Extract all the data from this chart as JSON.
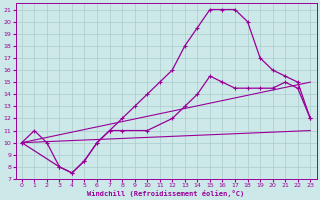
{
  "xlabel": "Windchill (Refroidissement éolien,°C)",
  "xlim": [
    -0.5,
    23.5
  ],
  "ylim": [
    7,
    21.5
  ],
  "xticks": [
    0,
    1,
    2,
    3,
    4,
    5,
    6,
    7,
    8,
    9,
    10,
    11,
    12,
    13,
    14,
    15,
    16,
    17,
    18,
    19,
    20,
    21,
    22,
    23
  ],
  "yticks": [
    7,
    8,
    9,
    10,
    11,
    12,
    13,
    14,
    15,
    16,
    17,
    18,
    19,
    20,
    21
  ],
  "background_color": "#cce8e8",
  "line_color": "#990099",
  "grid_color": "#aacccc",
  "line1_x": [
    0,
    1,
    2,
    3,
    4,
    5,
    6,
    7,
    8,
    9,
    10,
    11,
    12,
    13,
    14,
    15,
    16,
    17,
    18,
    19,
    20,
    21,
    22,
    23
  ],
  "line1_y": [
    10,
    11,
    10,
    8,
    7.5,
    8.5,
    10,
    11,
    12,
    13,
    14,
    15,
    16,
    18,
    19.5,
    21,
    21,
    21,
    20,
    17,
    16,
    15.5,
    15,
    12
  ],
  "line2_x": [
    0,
    3,
    4,
    5,
    6,
    7,
    8,
    10,
    12,
    13,
    14,
    15,
    16,
    17,
    18,
    19,
    20,
    21,
    22,
    23
  ],
  "line2_y": [
    10,
    8,
    7.5,
    8.5,
    10,
    11,
    11,
    11,
    12,
    13,
    14,
    15.5,
    15,
    14.5,
    14.5,
    14.5,
    14.5,
    15,
    14.5,
    12
  ],
  "line3_x": [
    0,
    23
  ],
  "line3_y": [
    10,
    15
  ],
  "line4_x": [
    0,
    23
  ],
  "line4_y": [
    10,
    11
  ]
}
